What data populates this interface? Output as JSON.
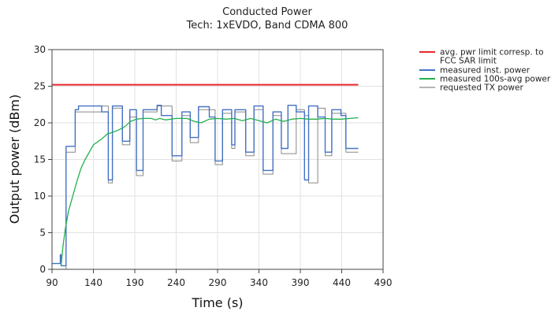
{
  "chart_data": {
    "type": "line",
    "title": "Conducted Power",
    "subtitle": "Tech: 1xEVDO, Band CDMA 800",
    "xlabel": "Time (s)",
    "ylabel": "Output power (dBm)",
    "xlim": [
      90,
      490
    ],
    "ylim": [
      0,
      30
    ],
    "xticks": [
      90,
      140,
      190,
      240,
      290,
      340,
      390,
      440,
      490
    ],
    "xtick_labels": [
      "90",
      "140",
      "190",
      "240",
      "290",
      "340",
      "390",
      "440",
      "490"
    ],
    "yticks": [
      0,
      5,
      10,
      15,
      20,
      25,
      30
    ],
    "ytick_labels": [
      "0",
      "5",
      "10",
      "15",
      "20",
      "25",
      "30"
    ],
    "grid": true,
    "legend_position": "right",
    "legend_lines": [
      [
        "avg. pwr limit corresp. to",
        "FCC SAR limit"
      ],
      [
        "measured inst. power"
      ],
      [
        "measured 100s-avg power"
      ],
      [
        "requested TX power"
      ]
    ],
    "series": [
      {
        "name": "avg. pwr limit corresp. to FCC SAR limit",
        "color": "#e8262d",
        "x": [
          90,
          460
        ],
        "y": [
          25.2,
          25.2
        ]
      },
      {
        "name": "measured inst. power",
        "color": "#4472c4",
        "x": [
          90,
          100,
          100,
          101,
          101,
          107,
          107,
          118,
          118,
          122,
          122,
          150,
          150,
          158,
          158,
          163,
          163,
          175,
          175,
          184,
          184,
          192,
          192,
          200,
          200,
          217,
          217,
          222,
          222,
          235,
          235,
          247,
          247,
          257,
          257,
          267,
          267,
          280,
          280,
          287,
          287,
          296,
          296,
          307,
          307,
          311,
          311,
          324,
          324,
          334,
          334,
          345,
          345,
          357,
          357,
          367,
          367,
          375,
          375,
          385,
          385,
          395,
          395,
          400,
          400,
          411,
          411,
          420,
          420,
          428,
          428,
          439,
          439,
          445,
          445,
          460
        ],
        "y": [
          0.8,
          0.8,
          2.0,
          2.0,
          0.5,
          0.5,
          16.8,
          16.8,
          21.8,
          21.8,
          22.3,
          22.3,
          21.5,
          21.5,
          12.2,
          12.2,
          22.3,
          22.3,
          17.5,
          17.5,
          21.8,
          21.8,
          13.5,
          13.5,
          21.8,
          21.8,
          22.4,
          22.4,
          21.0,
          21.0,
          15.5,
          15.5,
          21.5,
          21.5,
          18.0,
          18.0,
          22.2,
          22.2,
          20.8,
          20.8,
          14.8,
          14.8,
          21.8,
          21.8,
          17.0,
          17.0,
          21.8,
          21.8,
          16.0,
          16.0,
          22.3,
          22.3,
          13.5,
          13.5,
          21.5,
          21.5,
          16.5,
          16.5,
          22.4,
          22.4,
          21.5,
          21.5,
          12.2,
          12.2,
          22.3,
          22.3,
          20.8,
          20.8,
          16.0,
          16.0,
          21.8,
          21.8,
          21.0,
          21.0,
          16.5,
          16.5
        ]
      },
      {
        "name": "measured 100s-avg power",
        "color": "#22b04b",
        "x": [
          101,
          103,
          106,
          110,
          115,
          120,
          125,
          130,
          135,
          140,
          150,
          157,
          163,
          170,
          178,
          185,
          192,
          200,
          210,
          215,
          220,
          227,
          240,
          253,
          262,
          270,
          280,
          290,
          300,
          310,
          320,
          330,
          340,
          350,
          360,
          370,
          380,
          390,
          400,
          410,
          420,
          430,
          440,
          450,
          460
        ],
        "y": [
          0.5,
          3.0,
          5.5,
          8.0,
          10.0,
          12.0,
          13.8,
          15.0,
          16.0,
          17.0,
          17.8,
          18.5,
          18.7,
          19.0,
          19.5,
          20.2,
          20.5,
          20.6,
          20.6,
          20.4,
          20.6,
          20.4,
          20.6,
          20.6,
          20.2,
          20.0,
          20.5,
          20.6,
          20.5,
          20.6,
          20.3,
          20.6,
          20.3,
          20.0,
          20.5,
          20.2,
          20.5,
          20.6,
          20.5,
          20.5,
          20.6,
          20.5,
          20.5,
          20.6,
          20.7
        ]
      },
      {
        "name": "requested TX power",
        "color": "#888888",
        "x": [
          90,
          107,
          107,
          118,
          118,
          150,
          150,
          158,
          158,
          163,
          163,
          175,
          175,
          184,
          184,
          192,
          192,
          200,
          200,
          217,
          217,
          235,
          235,
          247,
          247,
          257,
          257,
          267,
          267,
          287,
          287,
          296,
          296,
          307,
          307,
          311,
          311,
          324,
          324,
          334,
          334,
          345,
          345,
          357,
          357,
          367,
          367,
          385,
          385,
          395,
          395,
          400,
          400,
          411,
          411,
          420,
          420,
          428,
          428,
          445,
          445,
          460
        ],
        "y": [
          0,
          0,
          16.0,
          16.0,
          21.5,
          21.5,
          22.3,
          22.3,
          11.8,
          11.8,
          22.0,
          22.0,
          17.0,
          17.0,
          20.8,
          20.8,
          12.8,
          12.8,
          21.5,
          21.5,
          22.3,
          22.3,
          14.8,
          14.8,
          21.0,
          21.0,
          17.3,
          17.3,
          21.8,
          21.8,
          14.3,
          14.3,
          21.3,
          21.3,
          16.5,
          16.5,
          21.5,
          21.5,
          15.5,
          15.5,
          21.8,
          21.8,
          13.0,
          13.0,
          21.0,
          21.0,
          15.8,
          15.8,
          21.8,
          21.8,
          21.0,
          21.0,
          11.8,
          11.8,
          22.0,
          22.0,
          15.5,
          15.5,
          21.3,
          21.3,
          16.0,
          16.0
        ]
      }
    ]
  }
}
